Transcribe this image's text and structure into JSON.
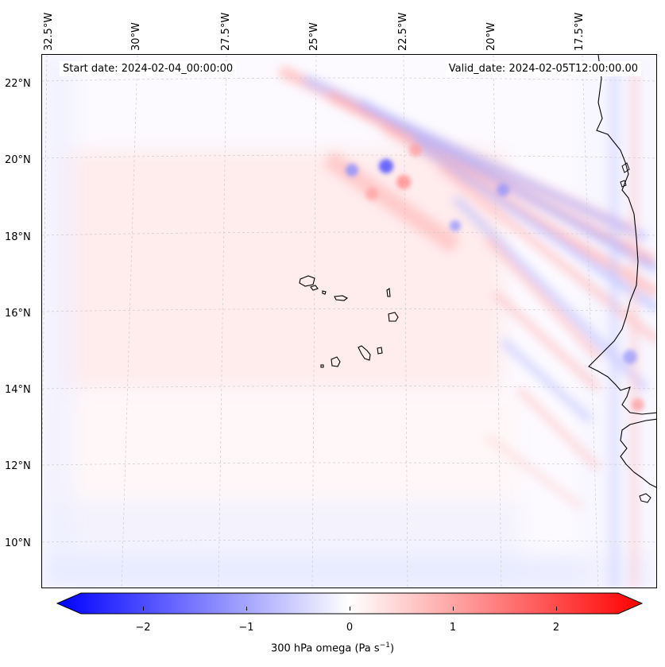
{
  "map": {
    "start_date": "Start date: 2024-02-04_00:00:00",
    "valid_date": "Valid_date: 2024-02-05T12:00:00.00",
    "longitude_labels": [
      "32.5°W",
      "30°W",
      "27.5°W",
      "25°W",
      "22.5°W",
      "20°W",
      "17.5°W"
    ],
    "latitude_labels": [
      "22°N",
      "20°N",
      "18°N",
      "16°N",
      "14°N",
      "12°N",
      "10°N"
    ],
    "variable": "300 hPa omega",
    "units": "Pa s",
    "units_exponent": "−1",
    "colorbar": {
      "ticks": [
        "−2",
        "−1",
        "0",
        "1",
        "2"
      ],
      "min": -2.6,
      "max": 2.6,
      "low_color": "#0000ff",
      "mid_color": "#ffffff",
      "high_color": "#ff0000"
    }
  }
}
